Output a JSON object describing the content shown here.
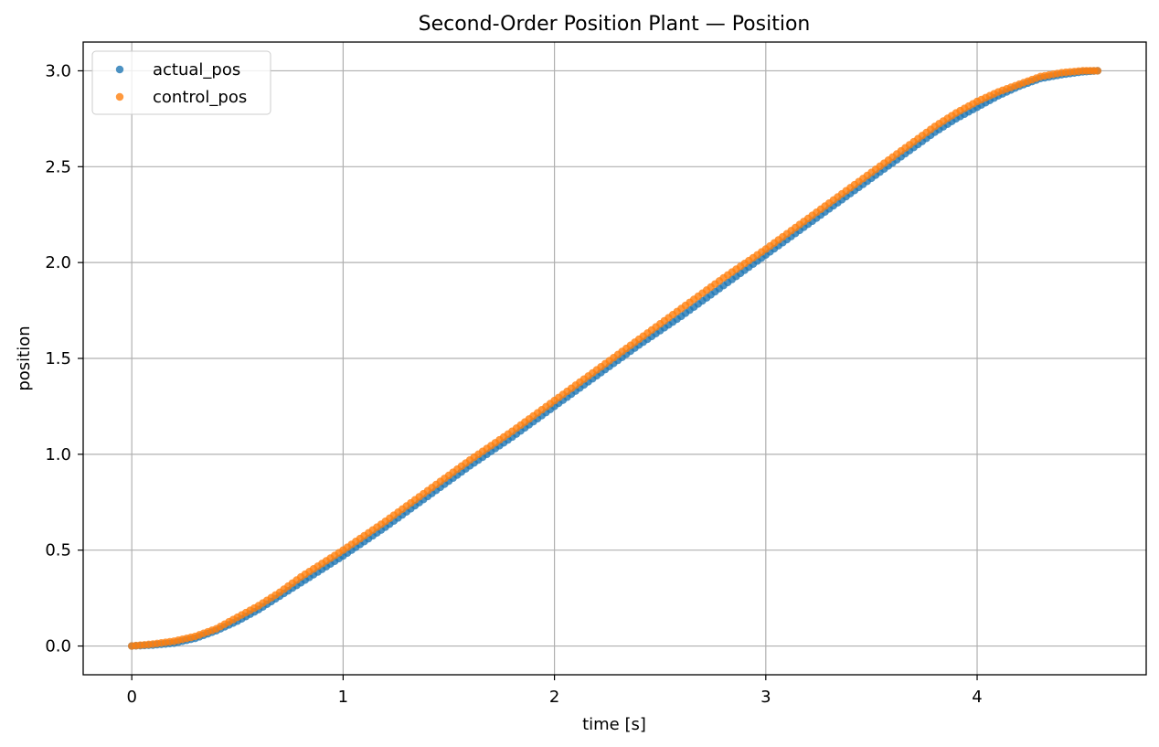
{
  "chart_data": {
    "type": "scatter",
    "title": "Second-Order Position Plant — Position",
    "xlabel": "time [s]",
    "ylabel": "position",
    "xlim": [
      -0.23,
      4.8
    ],
    "ylim": [
      -0.15,
      3.15
    ],
    "xticks": [
      0,
      1,
      2,
      3,
      4
    ],
    "xtick_labels": [
      "0",
      "1",
      "2",
      "3",
      "4"
    ],
    "yticks": [
      0.0,
      0.5,
      1.0,
      1.5,
      2.0,
      2.5,
      3.0
    ],
    "ytick_labels": [
      "0.0",
      "0.5",
      "1.0",
      "1.5",
      "2.0",
      "2.5",
      "3.0"
    ],
    "grid": true,
    "legend_position": "top-left",
    "series": [
      {
        "name": "actual_pos",
        "color": "#1f77b4",
        "x": [
          0.0,
          0.1,
          0.2,
          0.3,
          0.4,
          0.5,
          0.6,
          0.7,
          0.8,
          0.9,
          1.0,
          1.2,
          1.4,
          1.6,
          1.8,
          2.0,
          2.2,
          2.4,
          2.6,
          2.8,
          3.0,
          3.2,
          3.4,
          3.6,
          3.7,
          3.8,
          3.9,
          4.0,
          4.1,
          4.2,
          4.3,
          4.4,
          4.5,
          4.57
        ],
        "y": [
          0.0,
          0.005,
          0.015,
          0.04,
          0.08,
          0.13,
          0.19,
          0.26,
          0.33,
          0.4,
          0.47,
          0.62,
          0.78,
          0.94,
          1.09,
          1.25,
          1.41,
          1.57,
          1.72,
          1.88,
          2.04,
          2.2,
          2.36,
          2.52,
          2.6,
          2.68,
          2.75,
          2.81,
          2.87,
          2.92,
          2.96,
          2.98,
          2.995,
          3.0
        ]
      },
      {
        "name": "control_pos",
        "color": "#ff7f0e",
        "x": [
          0.0,
          0.1,
          0.2,
          0.3,
          0.4,
          0.5,
          0.6,
          0.7,
          0.8,
          0.9,
          1.0,
          1.2,
          1.4,
          1.6,
          1.8,
          2.0,
          2.2,
          2.4,
          2.6,
          2.8,
          3.0,
          3.2,
          3.4,
          3.6,
          3.7,
          3.8,
          3.9,
          4.0,
          4.1,
          4.2,
          4.3,
          4.4,
          4.5,
          4.57
        ],
        "y": [
          0.0,
          0.01,
          0.025,
          0.05,
          0.09,
          0.15,
          0.21,
          0.28,
          0.36,
          0.43,
          0.5,
          0.65,
          0.81,
          0.97,
          1.12,
          1.28,
          1.44,
          1.6,
          1.76,
          1.92,
          2.07,
          2.23,
          2.39,
          2.55,
          2.63,
          2.71,
          2.78,
          2.84,
          2.89,
          2.93,
          2.97,
          2.99,
          3.0,
          3.0
        ]
      }
    ]
  }
}
